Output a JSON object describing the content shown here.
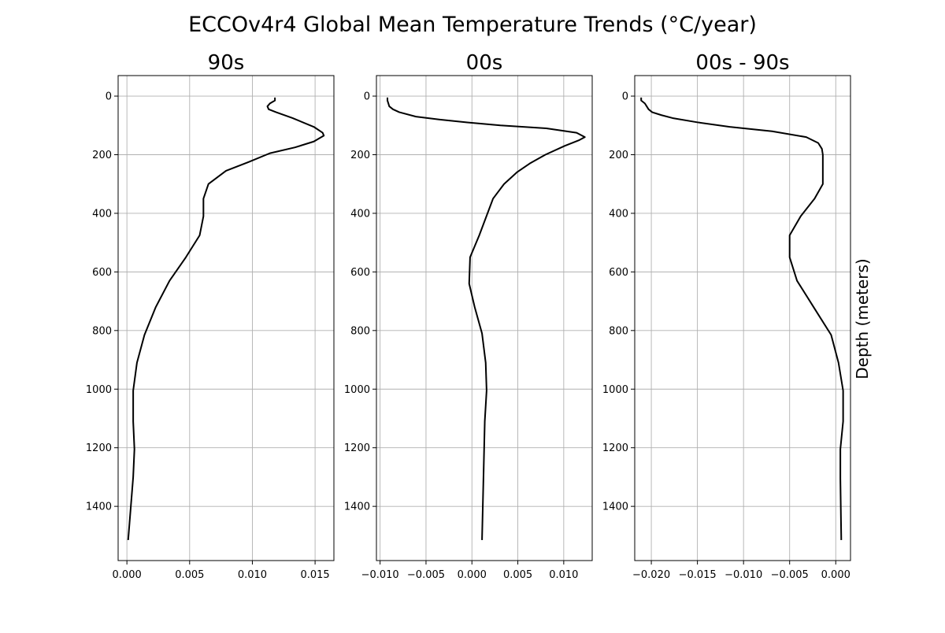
{
  "figure": {
    "title": "ECCOv4r4 Global Mean Temperature Trends (°C/year)",
    "ylabel": "Depth (meters)"
  },
  "chart_data": [
    {
      "type": "line",
      "title": "90s",
      "xlabel": "",
      "ylabel": "",
      "grid": true,
      "y_inverted": true,
      "xlim": [
        -0.0007,
        0.0165
      ],
      "ylim": [
        1585,
        -70
      ],
      "xticks": [
        0.0,
        0.005,
        0.01,
        0.015
      ],
      "xtick_labels": [
        "0.000",
        "0.005",
        "0.010",
        "0.015"
      ],
      "yticks": [
        0,
        200,
        400,
        600,
        800,
        1000,
        1200,
        1400
      ],
      "ytick_labels": [
        "0",
        "200",
        "400",
        "600",
        "800",
        "1000",
        "1200",
        "1400"
      ],
      "series": [
        {
          "color": "#000000",
          "x": [
            0.0118,
            0.0118,
            0.0114,
            0.0112,
            0.0113,
            0.0119,
            0.0132,
            0.0149,
            0.0156,
            0.0157,
            0.0149,
            0.0134,
            0.0114,
            0.0097,
            0.0079,
            0.0065,
            0.0061,
            0.0061,
            0.0058,
            0.0047,
            0.0034,
            0.0023,
            0.0014,
            0.0008,
            0.0005,
            0.0005,
            0.0006,
            0.0005,
            0.0001
          ],
          "y": [
            5,
            15,
            25,
            35,
            45,
            55,
            75,
            105,
            125,
            135,
            155,
            175,
            195,
            225,
            255,
            300,
            350,
            410,
            475,
            550,
            630,
            720,
            815,
            910,
            1005,
            1110,
            1205,
            1300,
            1515
          ]
        }
      ]
    },
    {
      "type": "line",
      "title": "00s",
      "xlabel": "",
      "ylabel": "",
      "grid": true,
      "y_inverted": true,
      "xlim": [
        -0.0104,
        0.0131
      ],
      "ylim": [
        1585,
        -70
      ],
      "xticks": [
        -0.01,
        -0.005,
        0.0,
        0.005,
        0.01
      ],
      "xtick_labels": [
        "−0.010",
        "−0.005",
        "0.000",
        "0.005",
        "0.010"
      ],
      "yticks": [
        0,
        200,
        400,
        600,
        800,
        1000,
        1200,
        1400
      ],
      "ytick_labels": [
        "0",
        "200",
        "400",
        "600",
        "800",
        "1000",
        "1200",
        "1400"
      ],
      "series": [
        {
          "color": "#000000",
          "x": [
            -0.0092,
            -0.0092,
            -0.0091,
            -0.009,
            -0.0086,
            -0.0079,
            -0.0061,
            -0.0035,
            -0.0005,
            0.0031,
            0.0081,
            0.0114,
            0.0123,
            0.0117,
            0.0101,
            0.008,
            0.0063,
            0.0049,
            0.0035,
            0.0023,
            0.0008,
            -0.0002,
            -0.0003,
            0.0003,
            0.0011,
            0.0015,
            0.0016,
            0.0014,
            0.0011
          ],
          "y": [
            5,
            15,
            25,
            35,
            45,
            55,
            70,
            80,
            90,
            100,
            110,
            125,
            140,
            150,
            170,
            200,
            230,
            260,
            300,
            350,
            475,
            550,
            640,
            720,
            810,
            910,
            1005,
            1110,
            1515
          ]
        }
      ]
    },
    {
      "type": "line",
      "title": "00s - 90s",
      "xlabel": "",
      "ylabel": "",
      "grid": true,
      "y_inverted": true,
      "xlim": [
        -0.0218,
        0.0016
      ],
      "ylim": [
        1585,
        -70
      ],
      "xticks": [
        -0.02,
        -0.015,
        -0.01,
        -0.005,
        0.0
      ],
      "xtick_labels": [
        "−0.020",
        "−0.015",
        "−0.010",
        "−0.005",
        "0.000"
      ],
      "yticks": [
        0,
        200,
        400,
        600,
        800,
        1000,
        1200,
        1400
      ],
      "ytick_labels": [
        "0",
        "200",
        "400",
        "600",
        "800",
        "1000",
        "1200",
        "1400"
      ],
      "series": [
        {
          "color": "#000000",
          "x": [
            -0.0211,
            -0.0211,
            -0.0207,
            -0.0205,
            -0.0203,
            -0.0199,
            -0.0189,
            -0.0177,
            -0.0149,
            -0.0115,
            -0.0069,
            -0.0032,
            -0.0019,
            -0.0015,
            -0.0014,
            -0.0014,
            -0.0014,
            -0.0023,
            -0.0038,
            -0.005,
            -0.005,
            -0.0042,
            -0.0024,
            -0.0005,
            0.0003,
            0.0008,
            0.0008,
            0.0005,
            0.0005,
            0.0006
          ],
          "y": [
            5,
            15,
            25,
            35,
            45,
            55,
            65,
            75,
            90,
            105,
            120,
            140,
            160,
            180,
            200,
            250,
            300,
            350,
            410,
            475,
            550,
            630,
            720,
            815,
            910,
            1005,
            1110,
            1205,
            1305,
            1515
          ]
        }
      ]
    }
  ]
}
